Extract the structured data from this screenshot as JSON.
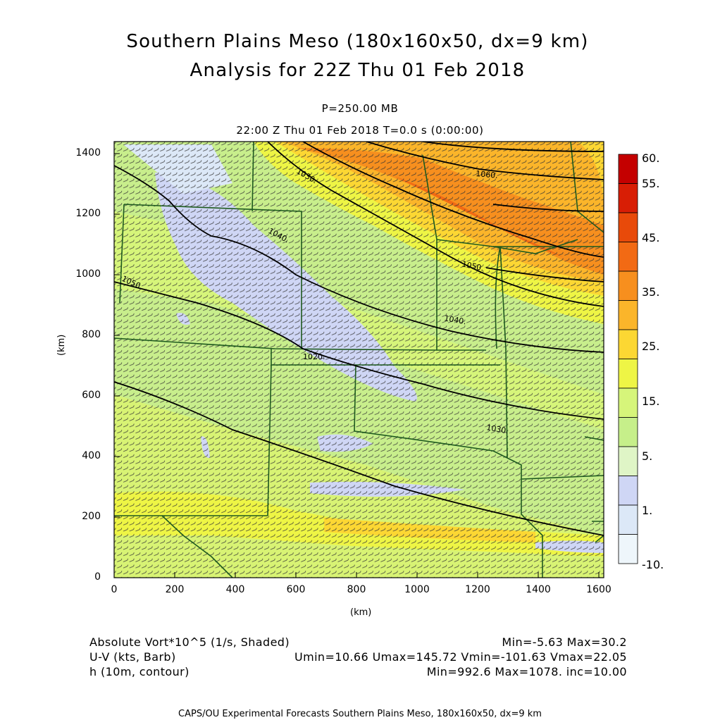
{
  "title": {
    "line1": "Southern Plains Meso (180x160x50, dx=9 km)",
    "line2": "Analysis for 22Z Thu 01 Feb 2018"
  },
  "subtitle": {
    "level": "P=250.00 MB",
    "time": "22:00 Z Thu 01 Feb 2018    T=0.0 s (0:00:00)"
  },
  "axes": {
    "x_label": "(km)",
    "y_label": "(km)",
    "x_ticks": [
      "0",
      "200",
      "400",
      "600",
      "800",
      "1000",
      "1200",
      "1400",
      "1600"
    ],
    "y_ticks": [
      "0",
      "200",
      "400",
      "600",
      "800",
      "1000",
      "1200",
      "1400"
    ],
    "x_range_km": [
      0,
      1610
    ],
    "y_range_km": [
      0,
      1440
    ]
  },
  "colorbar": {
    "labels": [
      "60.",
      "55.",
      "45.",
      "35.",
      "25.",
      "15.",
      "5.",
      "1.",
      "-10."
    ],
    "colors": [
      "#c40000",
      "#d81e05",
      "#e84a0a",
      "#f26a14",
      "#f78f1e",
      "#fbb52a",
      "#fcd733",
      "#eef545",
      "#d6f57a",
      "#c6ef8a",
      "#dff5c6",
      "#cfd6f5",
      "#dce8f7",
      "#eef6fb"
    ]
  },
  "contours": {
    "labels": [
      "1050.",
      "1040.",
      "1030.",
      "1020.",
      "1030.",
      "1040.",
      "1050.",
      "1060.",
      "1070.",
      "1060."
    ]
  },
  "legend": {
    "left": [
      "Absolute Vort*10^5 (1/s, Shaded)",
      "U-V (kts, Barb)",
      "h (10m, contour)"
    ],
    "right": [
      "Min=-5.63 Max=30.2",
      "Umin=10.66 Umax=145.72 Vmin=-101.63 Vmax=22.05",
      "Min=992.6 Max=1078. inc=10.00"
    ]
  },
  "footer": "CAPS/OU Experimental Forecasts  Southern Plains Meso, 180x160x50, dx=9 km"
}
